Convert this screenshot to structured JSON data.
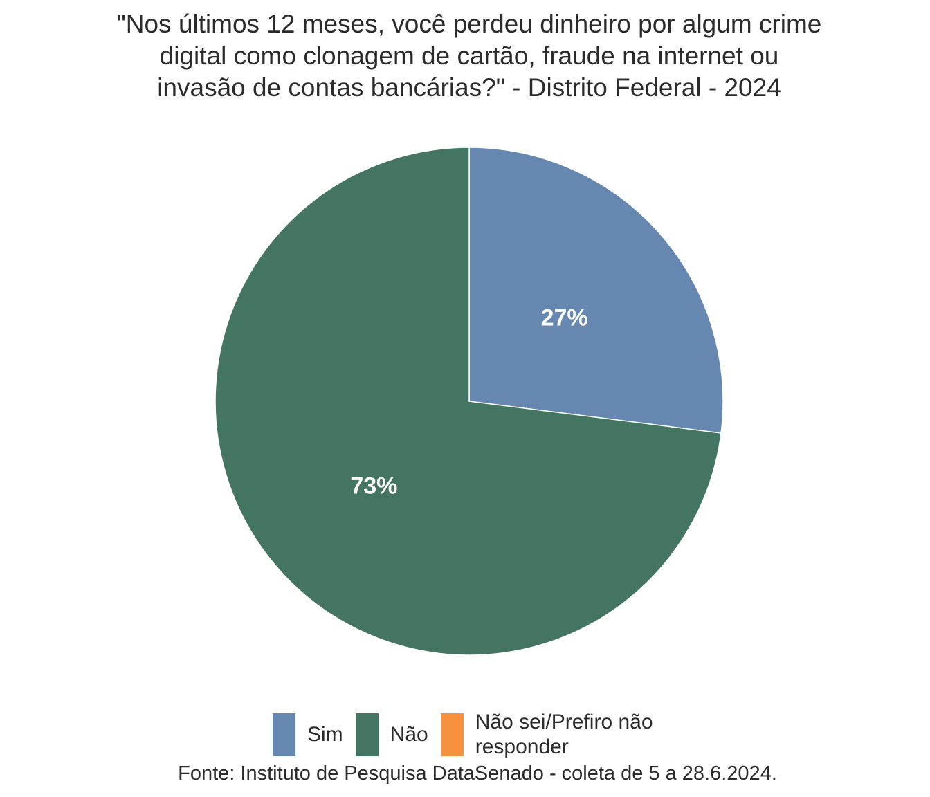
{
  "chart_data": {
    "type": "pie",
    "title": [
      "\"Nos últimos 12 meses, você perdeu dinheiro por algum crime",
      "digital como clonagem de cartão, fraude na internet ou",
      "invasão de contas bancárias?\" - Distrito Federal - 2024"
    ],
    "categories": [
      "Sim",
      "Não",
      "Não sei/Prefiro não responder"
    ],
    "values": [
      27,
      73,
      0
    ],
    "labels": [
      "27%",
      "73%",
      ""
    ],
    "colors": [
      "#6688B0",
      "#447563",
      "#F8913D"
    ],
    "legend_position": "bottom",
    "legend_labels": [
      "Sim",
      "Não",
      "Não sei/Prefiro não",
      "responder"
    ],
    "source": "Fonte: Instituto de Pesquisa DataSenado - coleta de 5 a 28.6.2024."
  }
}
